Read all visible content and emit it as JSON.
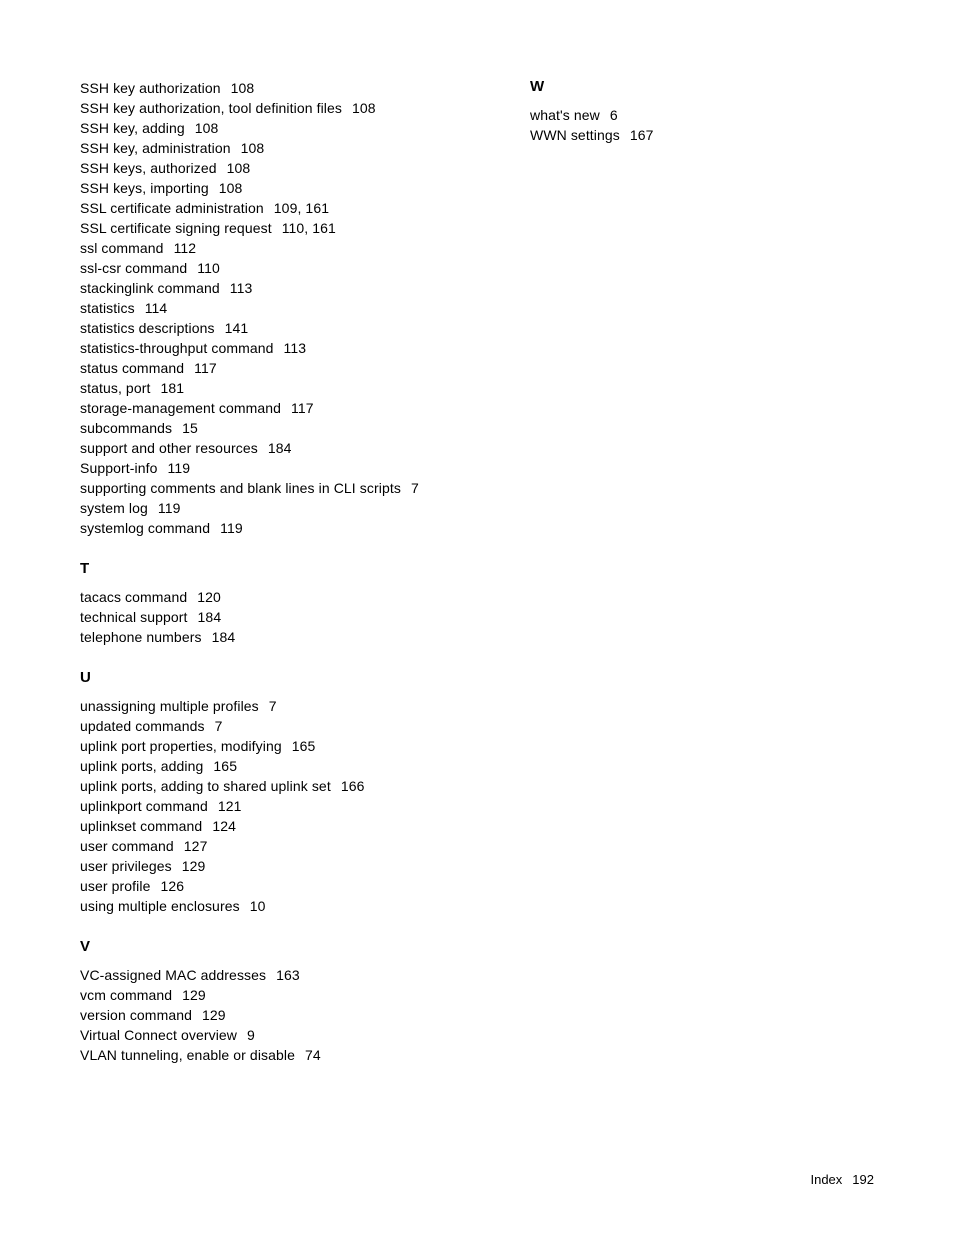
{
  "footer": {
    "label": "Index",
    "page": "192"
  },
  "left": {
    "pre": [
      {
        "term": "SSH key authorization",
        "pages": "108"
      },
      {
        "term": "SSH key authorization, tool definition files",
        "pages": "108"
      },
      {
        "term": "SSH key, adding",
        "pages": "108"
      },
      {
        "term": "SSH key, administration",
        "pages": "108"
      },
      {
        "term": "SSH keys, authorized",
        "pages": "108"
      },
      {
        "term": "SSH keys, importing",
        "pages": "108"
      },
      {
        "term": "SSL certificate administration",
        "pages": "109, 161"
      },
      {
        "term": "SSL certificate signing request",
        "pages": "110, 161"
      },
      {
        "term": "ssl command",
        "pages": "112"
      },
      {
        "term": "ssl-csr command",
        "pages": "110"
      },
      {
        "term": "stackinglink command",
        "pages": "113"
      },
      {
        "term": "statistics",
        "pages": "114"
      },
      {
        "term": "statistics descriptions",
        "pages": "141"
      },
      {
        "term": "statistics-throughput command",
        "pages": "113"
      },
      {
        "term": "status command",
        "pages": "117"
      },
      {
        "term": "status, port",
        "pages": "181"
      },
      {
        "term": "storage-management command",
        "pages": "117"
      },
      {
        "term": "subcommands",
        "pages": "15"
      },
      {
        "term": "support and other resources",
        "pages": "184"
      },
      {
        "term": "Support-info",
        "pages": "119"
      },
      {
        "term": "supporting comments and blank lines in CLI scripts",
        "pages": "7"
      },
      {
        "term": "system log",
        "pages": "119"
      },
      {
        "term": "systemlog command",
        "pages": "119"
      }
    ],
    "sections": [
      {
        "head": "T",
        "entries": [
          {
            "term": "tacacs command",
            "pages": "120"
          },
          {
            "term": "technical support",
            "pages": "184"
          },
          {
            "term": "telephone numbers",
            "pages": "184"
          }
        ]
      },
      {
        "head": "U",
        "entries": [
          {
            "term": "unassigning multiple profiles",
            "pages": "7"
          },
          {
            "term": "updated commands",
            "pages": "7"
          },
          {
            "term": "uplink port properties, modifying",
            "pages": "165"
          },
          {
            "term": "uplink ports, adding",
            "pages": "165"
          },
          {
            "term": "uplink ports, adding to shared uplink set",
            "pages": "166"
          },
          {
            "term": "uplinkport command",
            "pages": "121"
          },
          {
            "term": "uplinkset command",
            "pages": "124"
          },
          {
            "term": "user command",
            "pages": "127"
          },
          {
            "term": "user privileges",
            "pages": "129"
          },
          {
            "term": "user profile",
            "pages": "126"
          },
          {
            "term": "using multiple enclosures",
            "pages": "10"
          }
        ]
      },
      {
        "head": "V",
        "entries": [
          {
            "term": "VC-assigned MAC addresses",
            "pages": "163"
          },
          {
            "term": "vcm command",
            "pages": "129"
          },
          {
            "term": "version command",
            "pages": "129"
          },
          {
            "term": "Virtual Connect overview",
            "pages": "9"
          },
          {
            "term": "VLAN tunneling, enable or disable",
            "pages": "74"
          }
        ]
      }
    ]
  },
  "right": {
    "sections": [
      {
        "head": "W",
        "entries": [
          {
            "term": "what's new",
            "pages": "6"
          },
          {
            "term": "WWN settings",
            "pages": "167"
          }
        ]
      }
    ]
  }
}
